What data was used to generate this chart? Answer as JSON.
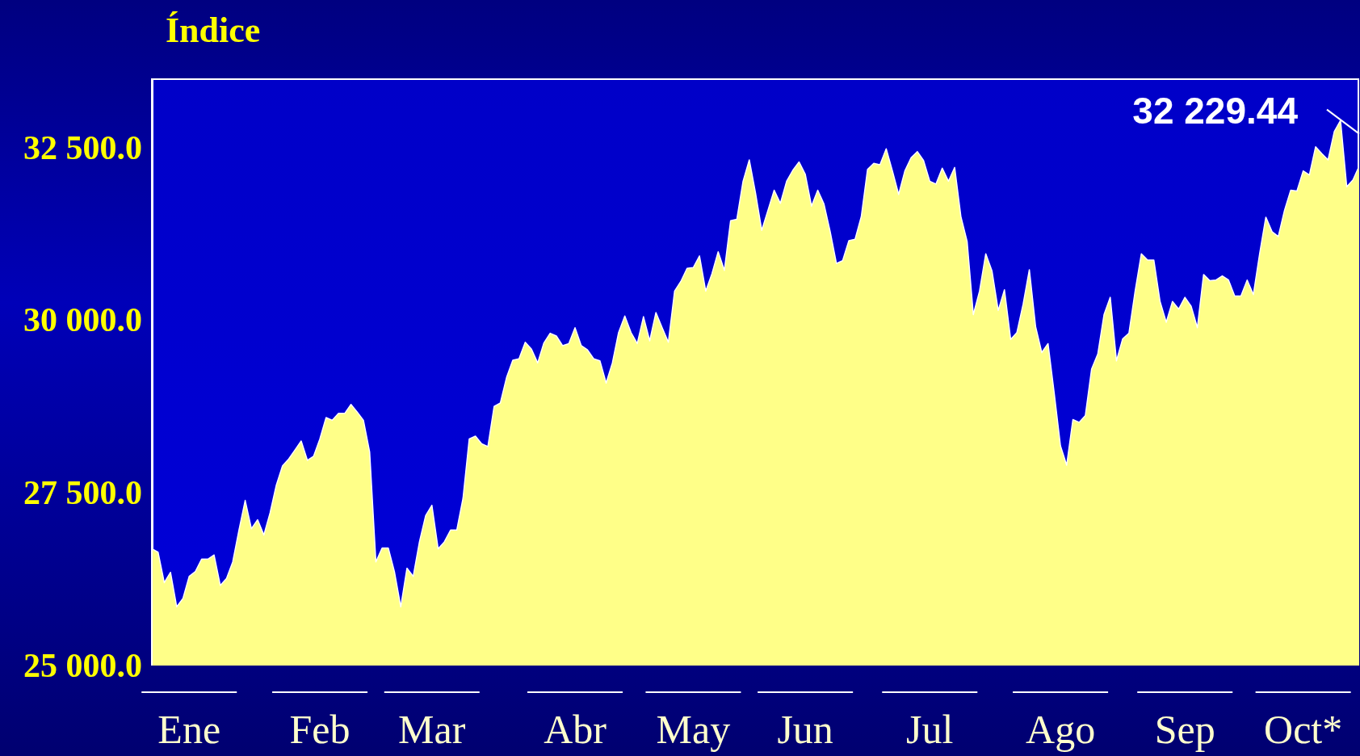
{
  "chart_data": {
    "type": "area",
    "title": "Índice",
    "categories": [
      null,
      null,
      null,
      null,
      null,
      null,
      "Ene",
      null,
      null,
      null,
      null,
      null,
      null,
      null,
      null,
      null,
      null,
      null,
      null,
      null,
      null,
      null,
      null,
      null,
      null,
      null,
      null,
      "Feb",
      null,
      null,
      null,
      null,
      null,
      null,
      null,
      null,
      null,
      null,
      null,
      null,
      null,
      null,
      null,
      null,
      null,
      "Mar",
      null,
      null,
      null,
      null,
      null,
      null,
      null,
      null,
      null,
      null,
      null,
      null,
      null,
      null,
      null,
      null,
      null,
      null,
      null,
      null,
      null,
      null,
      "Abr",
      null,
      null,
      null,
      null,
      null,
      null,
      null,
      null,
      null,
      null,
      null,
      null,
      null,
      null,
      null,
      null,
      null,
      null,
      "May",
      null,
      null,
      null,
      null,
      null,
      null,
      null,
      null,
      null,
      null,
      null,
      null,
      null,
      null,
      null,
      null,
      null,
      "Jun",
      null,
      null,
      null,
      null,
      null,
      null,
      null,
      null,
      null,
      null,
      null,
      null,
      null,
      null,
      null,
      null,
      null,
      null,
      null,
      "Jul",
      null,
      null,
      null,
      null,
      null,
      null,
      null,
      null,
      null,
      null,
      null,
      null,
      null,
      null,
      null,
      null,
      null,
      null,
      null,
      null,
      "Ago",
      null,
      null,
      null,
      null,
      null,
      null,
      null,
      null,
      null,
      null,
      null,
      null,
      null,
      null,
      null,
      null,
      null,
      null,
      null,
      "Sep",
      null,
      null,
      null,
      null,
      null,
      null,
      null,
      null,
      null,
      null,
      null,
      null,
      null,
      null,
      null,
      null,
      null,
      null,
      "Oct*",
      null,
      null,
      null,
      null,
      null,
      null,
      null,
      null,
      null
    ],
    "series": [
      {
        "color": "#ffff88",
        "values": [
          26690,
          26640,
          26200,
          26350,
          25850,
          25970,
          26290,
          26360,
          26540,
          26540,
          26600,
          26160,
          26260,
          26500,
          26960,
          27390,
          26980,
          27110,
          26890,
          27210,
          27610,
          27890,
          27990,
          28120,
          28250,
          27970,
          28030,
          28280,
          28590,
          28550,
          28650,
          28650,
          28780,
          28670,
          28550,
          28090,
          26500,
          26700,
          26700,
          26350,
          25850,
          26410,
          26290,
          26790,
          27170,
          27320,
          26690,
          26790,
          26960,
          26960,
          27420,
          28280,
          28320,
          28210,
          28170,
          28750,
          28800,
          29170,
          29420,
          29440,
          29680,
          29580,
          29380,
          29670,
          29810,
          29770,
          29630,
          29660,
          29890,
          29630,
          29570,
          29440,
          29410,
          29090,
          29380,
          29820,
          30060,
          29820,
          29660,
          30050,
          29700,
          30110,
          29890,
          29680,
          30420,
          30560,
          30750,
          30760,
          30930,
          30420,
          30670,
          30990,
          30720,
          31440,
          31460,
          32010,
          32320,
          31840,
          31300,
          31590,
          31880,
          31690,
          32010,
          32170,
          32290,
          32110,
          31650,
          31880,
          31680,
          31280,
          30820,
          30860,
          31150,
          31170,
          31500,
          32180,
          32270,
          32250,
          32480,
          32160,
          31820,
          32160,
          32350,
          32440,
          32310,
          32010,
          31970,
          32200,
          32010,
          32210,
          31500,
          31140,
          30080,
          30420,
          30960,
          30710,
          30140,
          30440,
          29720,
          29820,
          30230,
          30730,
          29910,
          29530,
          29660,
          28940,
          28180,
          27900,
          28560,
          28520,
          28620,
          29290,
          29510,
          30080,
          30330,
          29410,
          29730,
          29810,
          30420,
          30960,
          30870,
          30870,
          30270,
          29970,
          30270,
          30160,
          30330,
          30200,
          29890,
          30660,
          30570,
          30580,
          30640,
          30580,
          30350,
          30350,
          30580,
          30370,
          30960,
          31490,
          31280,
          31210,
          31590,
          31880,
          31870,
          32160,
          32100,
          32510,
          32410,
          32320,
          32730,
          32890,
          31930,
          32030,
          32230
        ]
      }
    ],
    "ylim": [
      25000,
      33500
    ],
    "yticks": [
      {
        "value": 25000,
        "label": "25 000.0"
      },
      {
        "value": 27500,
        "label": "27 500.0"
      },
      {
        "value": 30000,
        "label": "30 000.0"
      },
      {
        "value": 32500,
        "label": "32 500.0"
      }
    ],
    "annotations": [
      "32 229.44"
    ]
  }
}
